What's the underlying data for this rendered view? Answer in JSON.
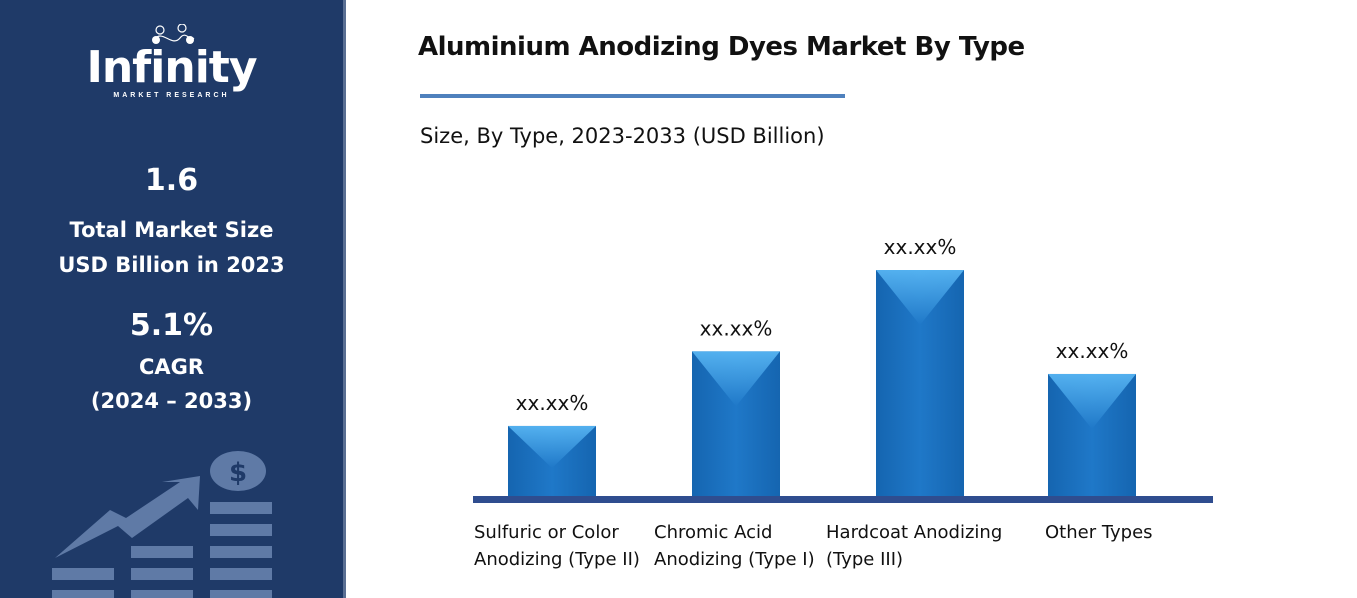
{
  "sidebar": {
    "logo": {
      "name": "Infinity",
      "tagline": "MARKET RESEARCH"
    },
    "market_size": "1.6",
    "market_size_label_1": "Total Market Size",
    "market_size_label_2": "USD Billion in 2023",
    "cagr": "5.1%",
    "cagr_label": "CAGR",
    "cagr_period": "(2024 – 2033)",
    "background_color": "#1f3a68"
  },
  "chart_data": {
    "type": "bar",
    "title": "Aluminium Anodizing Dyes Market By Type",
    "subtitle": "Size, By Type, 2023-2033 (USD Billion)",
    "categories": [
      [
        "Sulfuric or Color",
        "Anodizing (Type II)"
      ],
      [
        "Chromic Acid",
        "Anodizing (Type I)"
      ],
      [
        "Hardcoat Anodizing",
        "(Type III)"
      ],
      [
        "Other Types"
      ]
    ],
    "values_relative": [
      31,
      64,
      100,
      54
    ],
    "data_labels": [
      "xx.xx%",
      "xx.xx%",
      "xx.xx%",
      "xx.xx%"
    ],
    "ylim": [
      0,
      100
    ],
    "grid": false,
    "legend": "none",
    "bar_color": "#1f78c8",
    "axis_color": "#2f4d8f",
    "accent_color": "#4f81bd"
  }
}
